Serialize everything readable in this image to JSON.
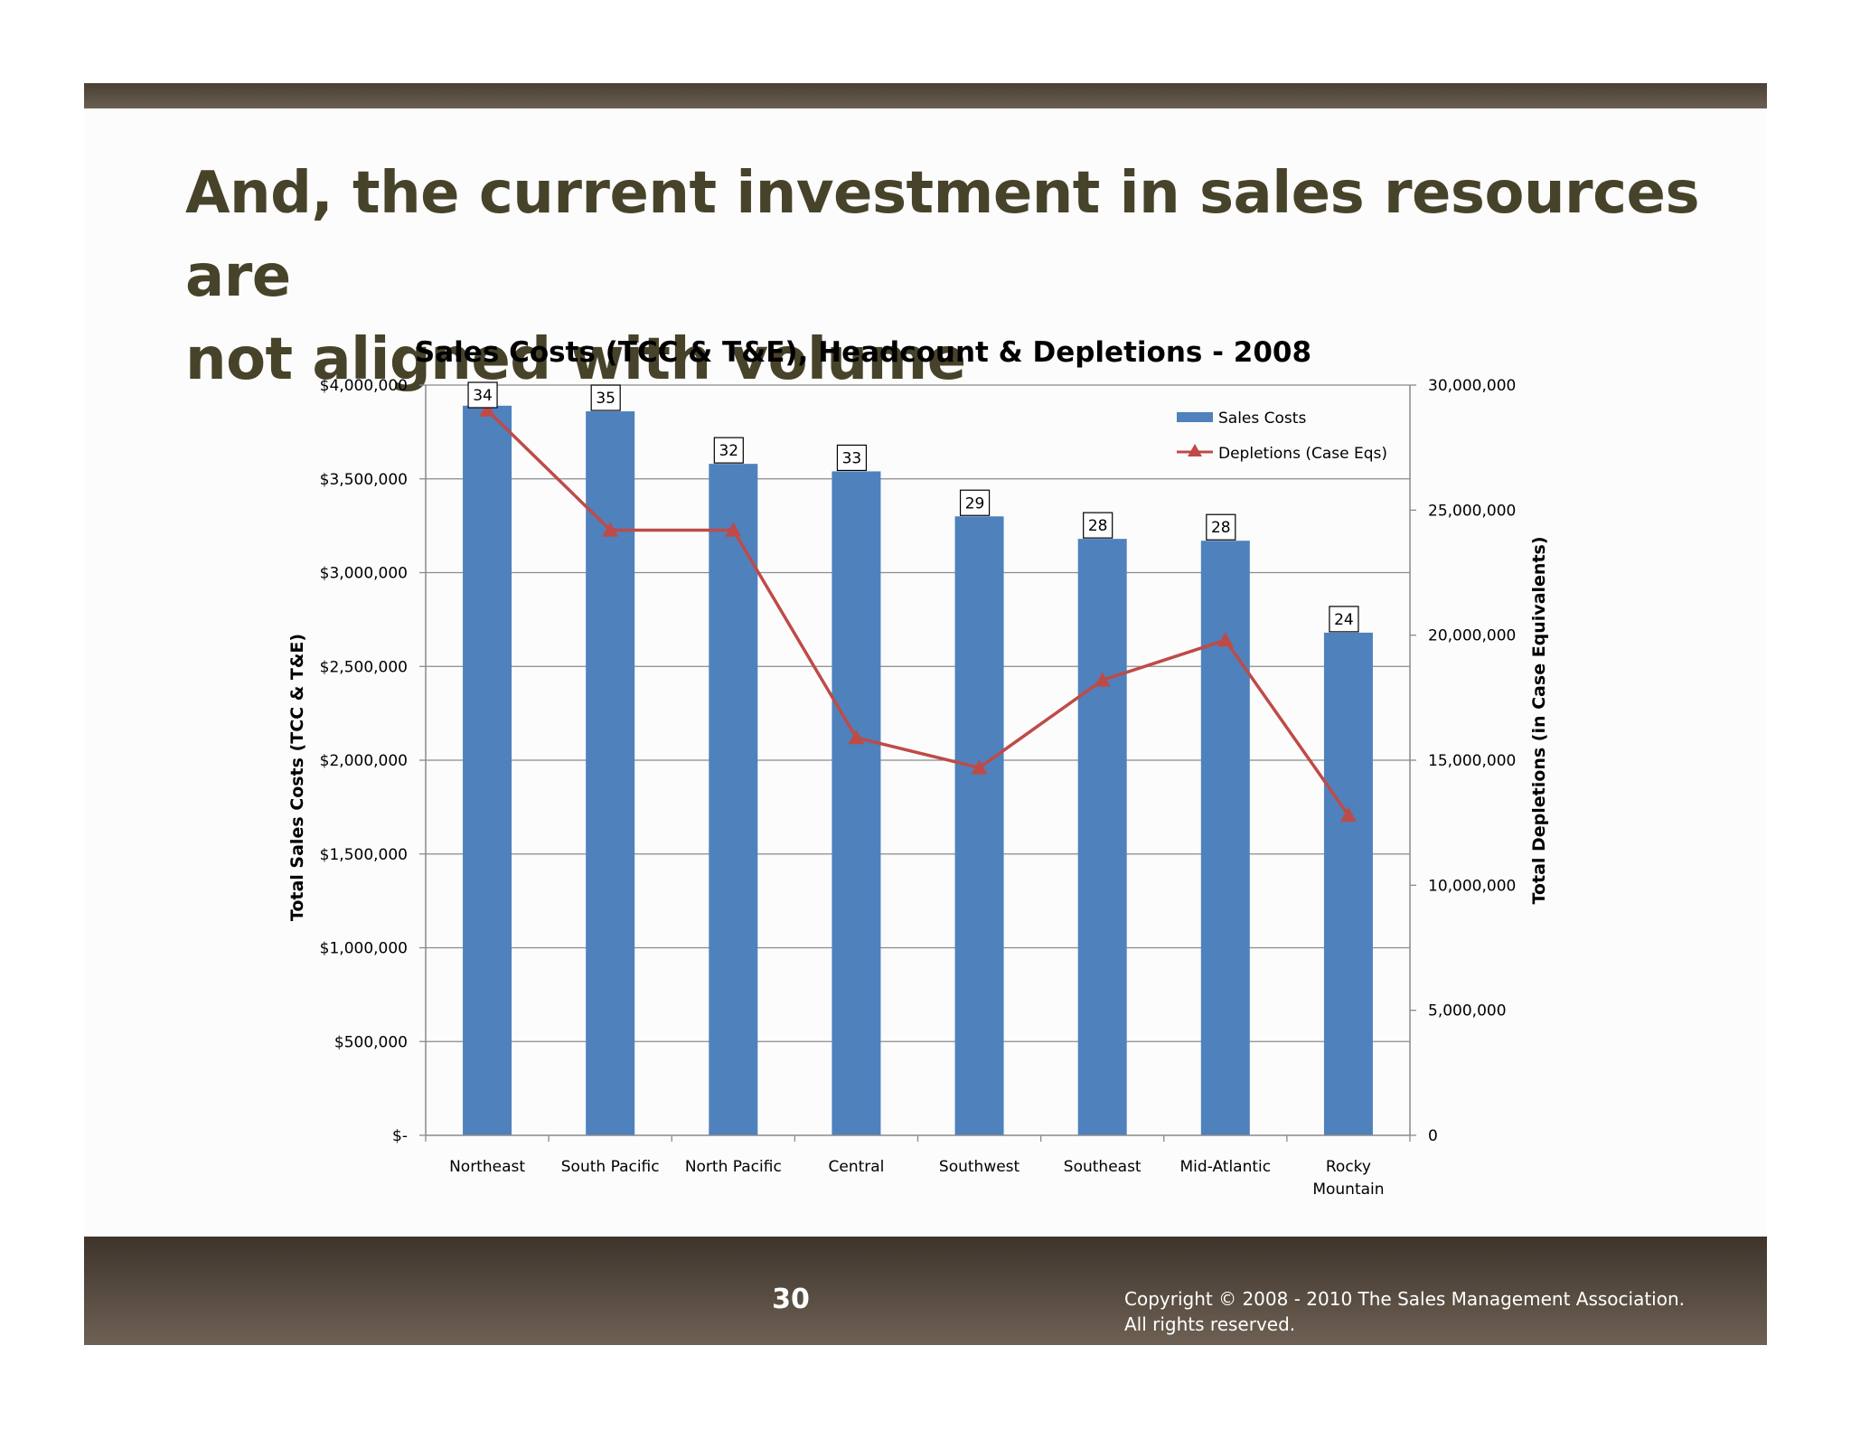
{
  "slide": {
    "title_line1": "And, the current investment in sales resources are",
    "title_line2": "not aligned with volume",
    "page_number": "30",
    "copyright_line1": "Copyright © 2008 - 2010 The Sales Management Association.",
    "copyright_line2": "All rights reserved."
  },
  "chart_data": {
    "type": "bar",
    "title": "Sales Costs (TCC & T&E), Headcount & Depletions - 2008",
    "categories": [
      "Northeast",
      "South Pacific",
      "North Pacific",
      "Central",
      "Southwest",
      "Southeast",
      "Mid-Atlantic",
      "Rocky Mountain"
    ],
    "category_lines": [
      [
        "Northeast"
      ],
      [
        "South Pacific"
      ],
      [
        "North Pacific"
      ],
      [
        "Central"
      ],
      [
        "Southwest"
      ],
      [
        "Southeast"
      ],
      [
        "Mid-Atlantic"
      ],
      [
        "Rocky",
        "Mountain"
      ]
    ],
    "series": [
      {
        "name": "Sales Costs",
        "type": "bar",
        "axis": "left",
        "color": "#4f81bd",
        "values": [
          3890000,
          3860000,
          3580000,
          3540000,
          3300000,
          3180000,
          3170000,
          2680000
        ]
      },
      {
        "name": "Depletions (Case Eqs)",
        "type": "line",
        "axis": "right",
        "color": "#be4b48",
        "marker": "triangle",
        "values": [
          29000000,
          24200000,
          24200000,
          15900000,
          14700000,
          18200000,
          19800000,
          12800000
        ]
      }
    ],
    "headcount_labels": [
      "34",
      "35",
      "32",
      "33",
      "29",
      "28",
      "28",
      "24"
    ],
    "ylabel": "Total Sales Costs (TCC & T&E)",
    "ylim": [
      0,
      4000000
    ],
    "yticks": [
      0,
      500000,
      1000000,
      1500000,
      2000000,
      2500000,
      3000000,
      3500000,
      4000000
    ],
    "ytick_labels": [
      "$-",
      "$500,000",
      "$1,000,000",
      "$1,500,000",
      "$2,000,000",
      "$2,500,000",
      "$3,000,000",
      "$3,500,000",
      "$4,000,000"
    ],
    "y2label": "Total Depletions (in Case Equivalents)",
    "y2lim": [
      0,
      30000000
    ],
    "y2ticks": [
      0,
      5000000,
      10000000,
      15000000,
      20000000,
      25000000,
      30000000
    ],
    "y2tick_labels": [
      "0",
      "5,000,000",
      "10,000,000",
      "15,000,000",
      "20,000,000",
      "25,000,000",
      "30,000,000"
    ],
    "grid": true,
    "legend_position": "top-right"
  }
}
